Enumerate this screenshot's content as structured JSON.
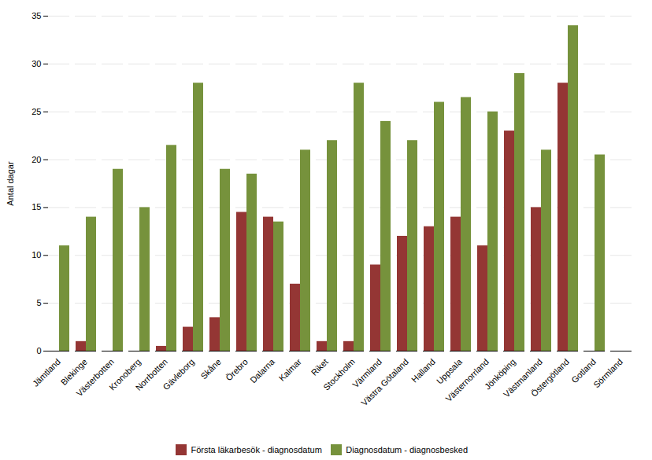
{
  "chart_data": {
    "type": "bar",
    "categories": [
      "Jämtland",
      "Blekinge",
      "Västerbotten",
      "Kronoberg",
      "Norrbotten",
      "Gävleborg",
      "Skåne",
      "Örebro",
      "Dalarna",
      "Kalmar",
      "Riket",
      "Stockholm",
      "Värmland",
      "Västra Götaland",
      "Halland",
      "Uppsala",
      "Västernorrland",
      "Jönköping",
      "Västmanland",
      "Östergötland",
      "Gotland",
      "Sörmland"
    ],
    "series": [
      {
        "name": "Första läkarbesök - diagnosdatum",
        "color": "#943634",
        "values": [
          0,
          1,
          0,
          0,
          0.5,
          2.5,
          3.5,
          14.5,
          14,
          7,
          1,
          1,
          9,
          12,
          13,
          14,
          11,
          23,
          15,
          28,
          0,
          0
        ]
      },
      {
        "name": "Diagnosdatum - diagnosbesked",
        "color": "#76923c",
        "values": [
          11,
          14,
          19,
          15,
          21.5,
          28,
          19,
          18.5,
          13.5,
          21,
          22,
          28,
          24,
          22,
          26,
          26.5,
          25,
          29,
          21,
          34,
          20.5,
          0
        ]
      }
    ],
    "ylabel": "Antal dagar",
    "ylim": [
      0,
      35
    ],
    "yticks": [
      0,
      5,
      10,
      15,
      20,
      25,
      30,
      35
    ],
    "grid": true,
    "legend": "bottom"
  }
}
